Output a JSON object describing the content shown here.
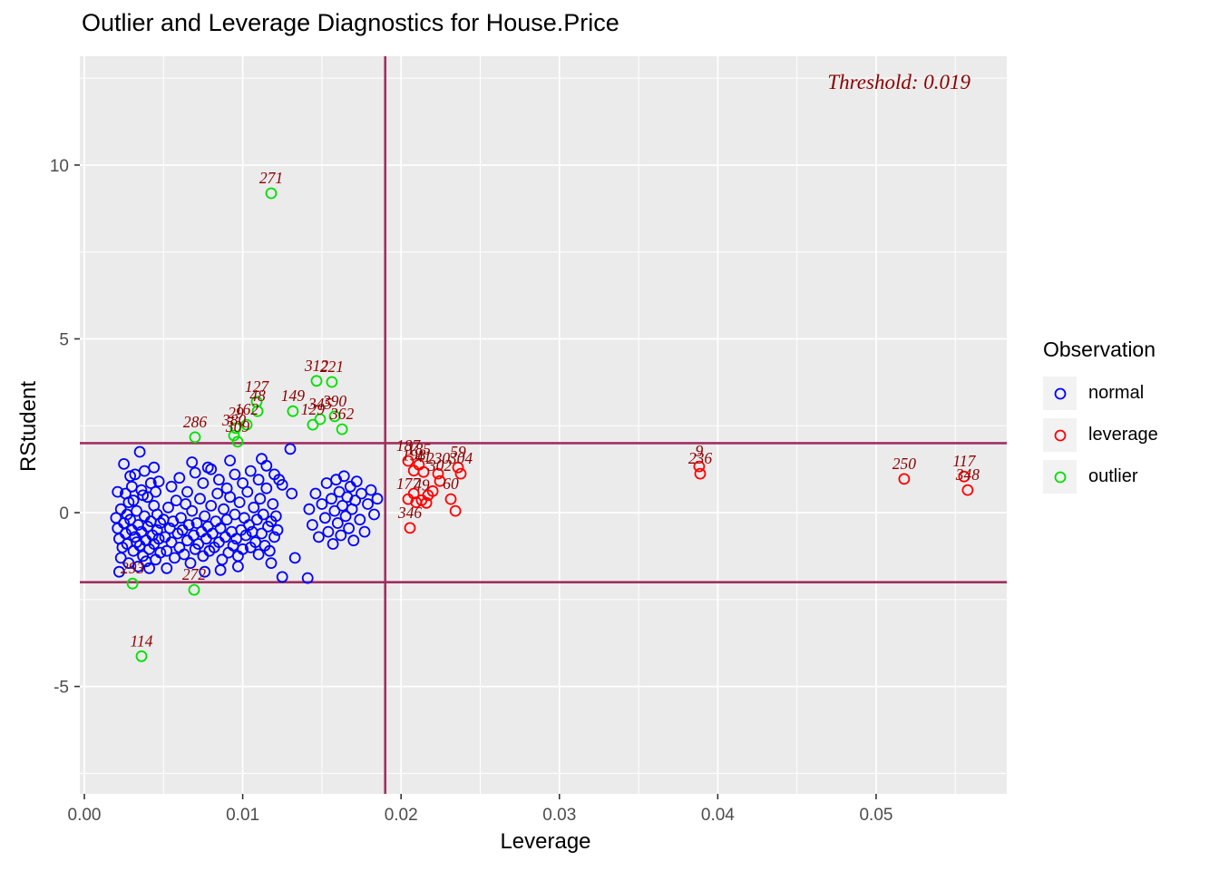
{
  "chart_data": {
    "type": "scatter",
    "title": "Outlier and Leverage Diagnostics for House.Price",
    "xlabel": "Leverage",
    "ylabel": "RStudent",
    "annotation": "Threshold: 0.019",
    "legend": {
      "title": "Observation",
      "items": [
        {
          "label": "normal",
          "color": "#0000ff"
        },
        {
          "label": "leverage",
          "color": "#ff0000"
        },
        {
          "label": "outlier",
          "color": "#00e000"
        }
      ]
    },
    "xlim": [
      0,
      0.05825
    ],
    "ylim": [
      -8.09,
      13.13
    ],
    "x_ticks": {
      "values": [
        0,
        0.01,
        0.02,
        0.03,
        0.04,
        0.05
      ],
      "labels": [
        "0.00",
        "0.01",
        "0.02",
        "0.03",
        "0.04",
        "0.05"
      ],
      "minor": [
        0.005,
        0.015,
        0.025,
        0.035,
        0.045,
        0.055
      ]
    },
    "y_ticks": {
      "values": [
        -5,
        0,
        5,
        10
      ],
      "labels": [
        "-5",
        "0",
        "5",
        "10"
      ],
      "minor": [
        -7.5,
        -2.5,
        2.5,
        7.5,
        12.5
      ]
    },
    "thresholds": {
      "vline_x": 0.019,
      "hlines_y": [
        2,
        -2
      ]
    },
    "colors": {
      "threshold_line": "#a03060",
      "point_label": "#8b0000",
      "panel_bg": "#ebebeb",
      "grid": "#ffffff",
      "axis_text": "#4d4d4d",
      "tick": "#333333"
    },
    "series": [
      {
        "name": "normal",
        "color": "#0000ff",
        "points": [
          [
            0.002,
            -0.15
          ],
          [
            0.0021,
            -0.45
          ],
          [
            0.0022,
            -0.75
          ],
          [
            0.0023,
            0.1
          ],
          [
            0.0024,
            -1.0
          ],
          [
            0.0025,
            -0.3
          ],
          [
            0.0026,
            -0.6
          ],
          [
            0.0027,
            -0.9
          ],
          [
            0.0028,
            0.3
          ],
          [
            0.0029,
            -0.2
          ],
          [
            0.003,
            -0.5
          ],
          [
            0.0031,
            -1.1
          ],
          [
            0.0032,
            -0.7
          ],
          [
            0.0033,
            0.05
          ],
          [
            0.0034,
            -0.35
          ],
          [
            0.0035,
            1.75
          ],
          [
            0.0035,
            -0.95
          ],
          [
            0.0036,
            -0.55
          ],
          [
            0.0037,
            -1.25
          ],
          [
            0.0038,
            -0.1
          ],
          [
            0.0039,
            -0.8
          ],
          [
            0.004,
            0.45
          ],
          [
            0.004,
            -0.4
          ],
          [
            0.0041,
            -1.05
          ],
          [
            0.0042,
            -0.25
          ],
          [
            0.0043,
            -0.65
          ],
          [
            0.0044,
            0.2
          ],
          [
            0.0044,
            -0.9
          ],
          [
            0.0045,
            -1.35
          ],
          [
            0.0046,
            -0.05
          ],
          [
            0.0046,
            -0.5
          ],
          [
            0.0047,
            0.9
          ],
          [
            0.0047,
            -0.75
          ],
          [
            0.0048,
            -1.15
          ],
          [
            0.003,
            0.75
          ],
          [
            0.0032,
            1.1
          ],
          [
            0.0026,
            0.55
          ],
          [
            0.0023,
            -1.3
          ],
          [
            0.0028,
            -1.45
          ],
          [
            0.0036,
            0.65
          ],
          [
            0.0038,
            1.2
          ],
          [
            0.0042,
            0.85
          ],
          [
            0.0025,
            1.4
          ],
          [
            0.0031,
            0.35
          ],
          [
            0.0021,
            0.6
          ],
          [
            0.0034,
            -1.55
          ],
          [
            0.0039,
            -1.4
          ],
          [
            0.0044,
            1.3
          ],
          [
            0.0029,
            1.05
          ],
          [
            0.0037,
            0.5
          ],
          [
            0.0041,
            -1.6
          ],
          [
            0.0027,
            -0.05
          ],
          [
            0.0033,
            -0.85
          ],
          [
            0.0045,
            0.6
          ],
          [
            0.0048,
            -0.3
          ],
          [
            0.0022,
            -1.7
          ],
          [
            0.005,
            -0.2
          ],
          [
            0.0051,
            -0.7
          ],
          [
            0.0052,
            -1.1
          ],
          [
            0.0053,
            0.15
          ],
          [
            0.0054,
            -0.45
          ],
          [
            0.0055,
            -0.85
          ],
          [
            0.0056,
            -0.25
          ],
          [
            0.0057,
            -1.3
          ],
          [
            0.0058,
            0.35
          ],
          [
            0.0059,
            -0.6
          ],
          [
            0.006,
            -1.0
          ],
          [
            0.0061,
            -0.15
          ],
          [
            0.0062,
            -0.5
          ],
          [
            0.0063,
            -1.2
          ],
          [
            0.0064,
            0.25
          ],
          [
            0.0065,
            -0.8
          ],
          [
            0.0066,
            -0.35
          ],
          [
            0.0067,
            -1.45
          ],
          [
            0.0068,
            0.05
          ],
          [
            0.0069,
            -0.65
          ],
          [
            0.007,
            -1.05
          ],
          [
            0.0071,
            -0.3
          ],
          [
            0.0072,
            -0.9
          ],
          [
            0.0073,
            0.4
          ],
          [
            0.0074,
            -0.55
          ],
          [
            0.0075,
            -1.25
          ],
          [
            0.0076,
            -0.1
          ],
          [
            0.0077,
            -0.75
          ],
          [
            0.0078,
            1.3
          ],
          [
            0.0078,
            -0.4
          ],
          [
            0.0079,
            -1.1
          ],
          [
            0.008,
            0.2
          ],
          [
            0.0081,
            -0.6
          ],
          [
            0.0082,
            -1.0
          ],
          [
            0.0083,
            -0.25
          ],
          [
            0.0084,
            0.55
          ],
          [
            0.0085,
            -0.85
          ],
          [
            0.0086,
            -0.45
          ],
          [
            0.0087,
            -1.35
          ],
          [
            0.0088,
            0.1
          ],
          [
            0.0089,
            -0.7
          ],
          [
            0.009,
            -0.2
          ],
          [
            0.0091,
            -1.15
          ],
          [
            0.0092,
            0.45
          ],
          [
            0.0093,
            -0.55
          ],
          [
            0.0094,
            -0.95
          ],
          [
            0.0095,
            -0.05
          ],
          [
            0.0096,
            -0.75
          ],
          [
            0.0097,
            -1.25
          ],
          [
            0.0098,
            0.3
          ],
          [
            0.0099,
            -0.5
          ],
          [
            0.01,
            -1.05
          ],
          [
            0.0101,
            -0.15
          ],
          [
            0.0102,
            -0.65
          ],
          [
            0.0103,
            0.6
          ],
          [
            0.0104,
            -0.35
          ],
          [
            0.0105,
            -1.0
          ],
          [
            0.0106,
            -0.55
          ],
          [
            0.0107,
            0.15
          ],
          [
            0.0108,
            -0.85
          ],
          [
            0.0109,
            -0.2
          ],
          [
            0.011,
            -1.2
          ],
          [
            0.0111,
            0.4
          ],
          [
            0.0112,
            -0.6
          ],
          [
            0.0113,
            -0.05
          ],
          [
            0.0114,
            -0.95
          ],
          [
            0.0115,
            0.7
          ],
          [
            0.0116,
            -0.4
          ],
          [
            0.0117,
            -1.1
          ],
          [
            0.0118,
            -0.25
          ],
          [
            0.0119,
            0.25
          ],
          [
            0.012,
            -0.7
          ],
          [
            0.0121,
            -0.1
          ],
          [
            0.0122,
            -0.5
          ],
          [
            0.0123,
            0.95
          ],
          [
            0.0055,
            0.75
          ],
          [
            0.006,
            1.0
          ],
          [
            0.0065,
            0.6
          ],
          [
            0.007,
            1.15
          ],
          [
            0.0075,
            0.85
          ],
          [
            0.008,
            1.25
          ],
          [
            0.0085,
            0.95
          ],
          [
            0.009,
            0.7
          ],
          [
            0.0095,
            1.1
          ],
          [
            0.01,
            0.85
          ],
          [
            0.0105,
            1.2
          ],
          [
            0.011,
            0.95
          ],
          [
            0.0115,
            1.35
          ],
          [
            0.012,
            1.1
          ],
          [
            0.0125,
            0.8
          ],
          [
            0.013,
            1.83
          ],
          [
            0.0131,
            0.55
          ],
          [
            0.0068,
            1.45
          ],
          [
            0.0092,
            1.5
          ],
          [
            0.0112,
            1.55
          ],
          [
            0.0052,
            -1.6
          ],
          [
            0.0076,
            -1.7
          ],
          [
            0.0097,
            -1.55
          ],
          [
            0.0118,
            -1.45
          ],
          [
            0.0125,
            -1.85
          ],
          [
            0.0141,
            -1.88
          ],
          [
            0.0133,
            -1.3
          ],
          [
            0.0086,
            -1.65
          ],
          [
            0.0142,
            0.1
          ],
          [
            0.0144,
            -0.35
          ],
          [
            0.0146,
            0.55
          ],
          [
            0.0148,
            -0.7
          ],
          [
            0.015,
            0.25
          ],
          [
            0.0152,
            -0.15
          ],
          [
            0.0153,
            0.85
          ],
          [
            0.0154,
            -0.55
          ],
          [
            0.0156,
            0.4
          ],
          [
            0.0157,
            -0.9
          ],
          [
            0.0158,
            0.05
          ],
          [
            0.0159,
            0.95
          ],
          [
            0.016,
            -0.3
          ],
          [
            0.0161,
            0.6
          ],
          [
            0.0162,
            -0.65
          ],
          [
            0.0163,
            0.2
          ],
          [
            0.0164,
            1.05
          ],
          [
            0.0165,
            -0.1
          ],
          [
            0.0166,
            0.45
          ],
          [
            0.0167,
            -0.45
          ],
          [
            0.0168,
            0.75
          ],
          [
            0.0169,
            0.1
          ],
          [
            0.017,
            -0.8
          ],
          [
            0.0171,
            0.35
          ],
          [
            0.0172,
            0.9
          ],
          [
            0.0174,
            -0.2
          ],
          [
            0.0175,
            0.55
          ],
          [
            0.0177,
            -0.55
          ],
          [
            0.0179,
            0.25
          ],
          [
            0.0181,
            0.65
          ],
          [
            0.0183,
            -0.05
          ],
          [
            0.0185,
            0.4
          ]
        ]
      },
      {
        "name": "leverage",
        "color": "#ff0000",
        "points": [
          [
            0.02045,
            1.49,
            "187"
          ],
          [
            0.02113,
            1.38,
            "185"
          ],
          [
            0.02142,
            1.17,
            "41"
          ],
          [
            0.0208,
            1.21,
            "198"
          ],
          [
            0.0236,
            1.3,
            "59"
          ],
          [
            0.02377,
            1.12,
            "304"
          ],
          [
            0.02234,
            1.12,
            "230"
          ],
          [
            0.02245,
            0.91,
            "302"
          ],
          [
            0.02045,
            0.39,
            "177"
          ],
          [
            0.0213,
            0.36,
            "49"
          ],
          [
            0.02314,
            0.39,
            "60"
          ],
          [
            0.02056,
            -0.44,
            "346"
          ],
          [
            0.0208,
            0.55,
            ""
          ],
          [
            0.0217,
            0.5,
            ""
          ],
          [
            0.022,
            0.62,
            ""
          ],
          [
            0.02343,
            0.05,
            ""
          ],
          [
            0.02095,
            0.3,
            ""
          ],
          [
            0.0216,
            0.28,
            ""
          ],
          [
            0.03883,
            1.33,
            "9"
          ],
          [
            0.03889,
            1.12,
            "236"
          ],
          [
            0.05177,
            0.97,
            "250"
          ],
          [
            0.05555,
            1.04,
            "117"
          ],
          [
            0.05578,
            0.65,
            "348"
          ]
        ]
      },
      {
        "name": "outlier",
        "color": "#00e000",
        "points": [
          [
            0.0118,
            9.19,
            "271"
          ],
          [
            0.01466,
            3.79,
            "312"
          ],
          [
            0.01563,
            3.76,
            "221"
          ],
          [
            0.01088,
            3.19,
            "127"
          ],
          [
            0.01094,
            2.92,
            "48"
          ],
          [
            0.01025,
            2.53,
            "162"
          ],
          [
            0.00956,
            2.43,
            "29"
          ],
          [
            0.00945,
            2.22,
            "380"
          ],
          [
            0.00968,
            2.04,
            "309"
          ],
          [
            0.00699,
            2.17,
            "286"
          ],
          [
            0.01317,
            2.92,
            "149"
          ],
          [
            0.01581,
            2.77,
            "390"
          ],
          [
            0.01489,
            2.69,
            "345"
          ],
          [
            0.01627,
            2.4,
            "362"
          ],
          [
            0.01443,
            2.53,
            "129"
          ],
          [
            0.00304,
            -2.04,
            "293"
          ],
          [
            0.00693,
            -2.22,
            "272"
          ],
          [
            0.00361,
            -4.13,
            "114"
          ]
        ]
      }
    ]
  }
}
